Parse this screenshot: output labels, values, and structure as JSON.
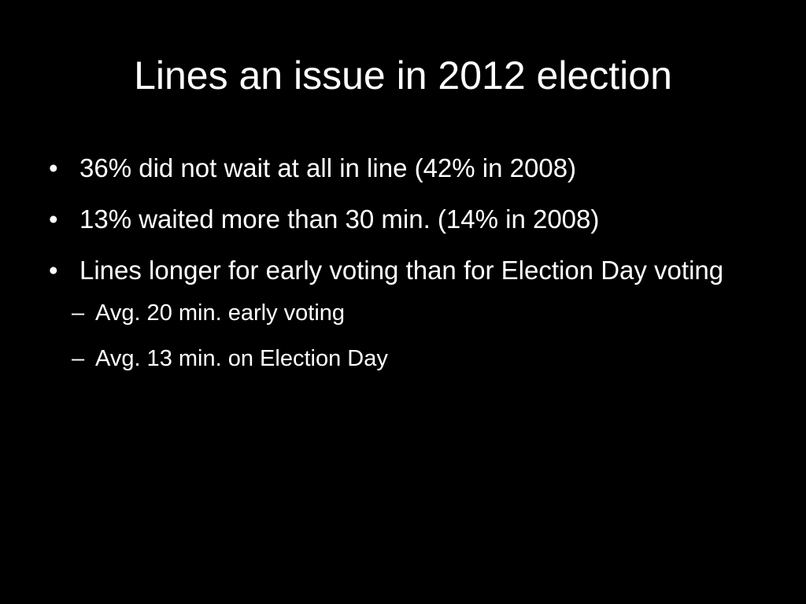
{
  "slide": {
    "title": "Lines an issue in 2012 election",
    "bullet_marker": "•",
    "sub_marker": "–",
    "bullets": [
      {
        "text": "36% did not wait at all in line (42% in 2008)"
      },
      {
        "text": "13% waited more than 30 min. (14% in 2008)"
      },
      {
        "text": "Lines longer for early voting than for Election Day voting",
        "subs": [
          {
            "text": "Avg. 20 min. early voting"
          },
          {
            "text": "Avg. 13 min. on Election Day"
          }
        ]
      }
    ],
    "colors": {
      "background": "#000000",
      "text": "#ffffff"
    }
  }
}
